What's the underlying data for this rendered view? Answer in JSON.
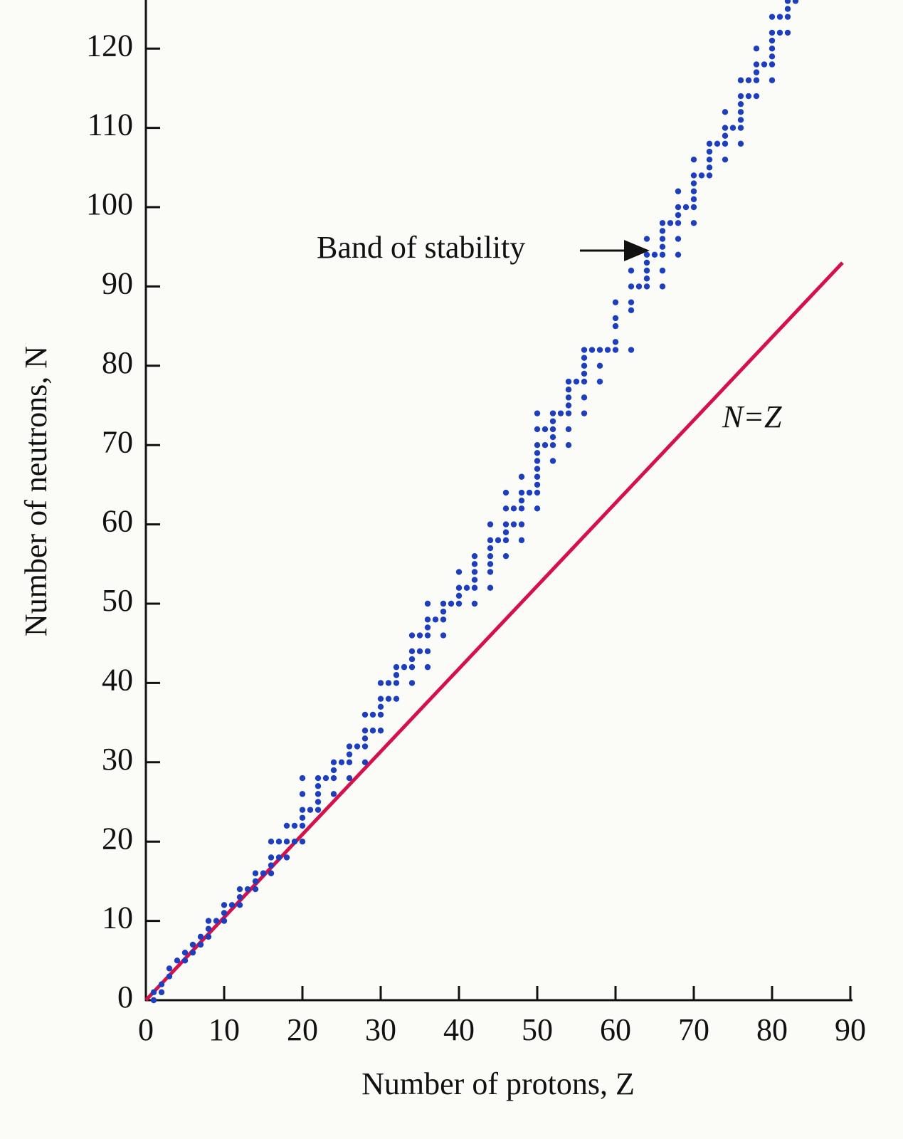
{
  "chart_data": {
    "type": "scatter",
    "xlabel": "Number of protons, Z",
    "ylabel": "Number of neutrons, N",
    "annotations": [
      "Band of stability",
      "N=Z"
    ],
    "xlim": [
      0,
      90
    ],
    "ylim": [
      0,
      126
    ],
    "xticks": [
      0,
      10,
      20,
      30,
      40,
      50,
      60,
      70,
      80,
      90
    ],
    "yticks": [
      0,
      10,
      20,
      30,
      40,
      50,
      60,
      70,
      80,
      90,
      100,
      110,
      120
    ],
    "point_color": "#1d3fbf",
    "line_color": "#d5104a",
    "line": {
      "x": [
        0,
        89
      ],
      "y": [
        0,
        93
      ]
    },
    "points": [
      [
        1,
        0
      ],
      [
        1,
        1
      ],
      [
        2,
        1
      ],
      [
        2,
        2
      ],
      [
        3,
        3
      ],
      [
        3,
        4
      ],
      [
        4,
        5
      ],
      [
        5,
        5
      ],
      [
        5,
        6
      ],
      [
        6,
        6
      ],
      [
        6,
        7
      ],
      [
        7,
        7
      ],
      [
        7,
        8
      ],
      [
        8,
        8
      ],
      [
        8,
        9
      ],
      [
        8,
        10
      ],
      [
        9,
        10
      ],
      [
        10,
        10
      ],
      [
        10,
        11
      ],
      [
        10,
        12
      ],
      [
        11,
        12
      ],
      [
        12,
        12
      ],
      [
        12,
        13
      ],
      [
        12,
        14
      ],
      [
        13,
        14
      ],
      [
        14,
        14
      ],
      [
        14,
        15
      ],
      [
        14,
        16
      ],
      [
        15,
        16
      ],
      [
        16,
        16
      ],
      [
        16,
        17
      ],
      [
        16,
        18
      ],
      [
        16,
        20
      ],
      [
        17,
        18
      ],
      [
        17,
        20
      ],
      [
        18,
        18
      ],
      [
        18,
        20
      ],
      [
        18,
        22
      ],
      [
        19,
        20
      ],
      [
        19,
        22
      ],
      [
        20,
        20
      ],
      [
        20,
        22
      ],
      [
        20,
        23
      ],
      [
        20,
        24
      ],
      [
        20,
        26
      ],
      [
        20,
        28
      ],
      [
        21,
        24
      ],
      [
        22,
        24
      ],
      [
        22,
        25
      ],
      [
        22,
        26
      ],
      [
        22,
        27
      ],
      [
        22,
        28
      ],
      [
        23,
        28
      ],
      [
        24,
        26
      ],
      [
        24,
        28
      ],
      [
        24,
        29
      ],
      [
        24,
        30
      ],
      [
        25,
        30
      ],
      [
        26,
        28
      ],
      [
        26,
        30
      ],
      [
        26,
        31
      ],
      [
        26,
        32
      ],
      [
        27,
        32
      ],
      [
        28,
        30
      ],
      [
        28,
        32
      ],
      [
        28,
        33
      ],
      [
        28,
        34
      ],
      [
        28,
        36
      ],
      [
        29,
        34
      ],
      [
        29,
        36
      ],
      [
        30,
        34
      ],
      [
        30,
        36
      ],
      [
        30,
        37
      ],
      [
        30,
        38
      ],
      [
        30,
        40
      ],
      [
        31,
        38
      ],
      [
        31,
        40
      ],
      [
        32,
        38
      ],
      [
        32,
        40
      ],
      [
        32,
        41
      ],
      [
        32,
        42
      ],
      [
        33,
        42
      ],
      [
        34,
        40
      ],
      [
        34,
        42
      ],
      [
        34,
        43
      ],
      [
        34,
        44
      ],
      [
        34,
        46
      ],
      [
        35,
        44
      ],
      [
        35,
        46
      ],
      [
        36,
        42
      ],
      [
        36,
        44
      ],
      [
        36,
        46
      ],
      [
        36,
        47
      ],
      [
        36,
        48
      ],
      [
        36,
        50
      ],
      [
        37,
        48
      ],
      [
        38,
        46
      ],
      [
        38,
        48
      ],
      [
        38,
        49
      ],
      [
        38,
        50
      ],
      [
        39,
        50
      ],
      [
        40,
        50
      ],
      [
        40,
        51
      ],
      [
        40,
        52
      ],
      [
        40,
        54
      ],
      [
        41,
        52
      ],
      [
        42,
        50
      ],
      [
        42,
        52
      ],
      [
        42,
        53
      ],
      [
        42,
        54
      ],
      [
        42,
        55
      ],
      [
        42,
        56
      ],
      [
        44,
        52
      ],
      [
        44,
        54
      ],
      [
        44,
        55
      ],
      [
        44,
        56
      ],
      [
        44,
        57
      ],
      [
        44,
        58
      ],
      [
        44,
        60
      ],
      [
        45,
        58
      ],
      [
        46,
        56
      ],
      [
        46,
        58
      ],
      [
        46,
        59
      ],
      [
        46,
        60
      ],
      [
        46,
        62
      ],
      [
        46,
        64
      ],
      [
        47,
        60
      ],
      [
        47,
        62
      ],
      [
        48,
        58
      ],
      [
        48,
        60
      ],
      [
        48,
        62
      ],
      [
        48,
        63
      ],
      [
        48,
        64
      ],
      [
        48,
        66
      ],
      [
        49,
        64
      ],
      [
        50,
        62
      ],
      [
        50,
        64
      ],
      [
        50,
        65
      ],
      [
        50,
        66
      ],
      [
        50,
        67
      ],
      [
        50,
        68
      ],
      [
        50,
        69
      ],
      [
        50,
        70
      ],
      [
        50,
        72
      ],
      [
        50,
        74
      ],
      [
        51,
        70
      ],
      [
        51,
        72
      ],
      [
        52,
        68
      ],
      [
        52,
        70
      ],
      [
        52,
        71
      ],
      [
        52,
        72
      ],
      [
        52,
        73
      ],
      [
        52,
        74
      ],
      [
        53,
        74
      ],
      [
        54,
        70
      ],
      [
        54,
        72
      ],
      [
        54,
        74
      ],
      [
        54,
        75
      ],
      [
        54,
        76
      ],
      [
        54,
        77
      ],
      [
        54,
        78
      ],
      [
        55,
        78
      ],
      [
        56,
        74
      ],
      [
        56,
        76
      ],
      [
        56,
        78
      ],
      [
        56,
        79
      ],
      [
        56,
        80
      ],
      [
        56,
        81
      ],
      [
        56,
        82
      ],
      [
        57,
        82
      ],
      [
        58,
        78
      ],
      [
        58,
        80
      ],
      [
        58,
        82
      ],
      [
        59,
        82
      ],
      [
        60,
        82
      ],
      [
        60,
        83
      ],
      [
        60,
        85
      ],
      [
        60,
        86
      ],
      [
        60,
        88
      ],
      [
        62,
        82
      ],
      [
        62,
        87
      ],
      [
        62,
        88
      ],
      [
        62,
        90
      ],
      [
        62,
        92
      ],
      [
        63,
        90
      ],
      [
        64,
        90
      ],
      [
        64,
        91
      ],
      [
        64,
        92
      ],
      [
        64,
        93
      ],
      [
        64,
        94
      ],
      [
        64,
        96
      ],
      [
        65,
        94
      ],
      [
        66,
        90
      ],
      [
        66,
        92
      ],
      [
        66,
        94
      ],
      [
        66,
        95
      ],
      [
        66,
        96
      ],
      [
        66,
        97
      ],
      [
        66,
        98
      ],
      [
        67,
        98
      ],
      [
        68,
        94
      ],
      [
        68,
        96
      ],
      [
        68,
        98
      ],
      [
        68,
        99
      ],
      [
        68,
        100
      ],
      [
        68,
        102
      ],
      [
        69,
        100
      ],
      [
        70,
        98
      ],
      [
        70,
        100
      ],
      [
        70,
        101
      ],
      [
        70,
        102
      ],
      [
        70,
        103
      ],
      [
        70,
        104
      ],
      [
        70,
        106
      ],
      [
        71,
        104
      ],
      [
        72,
        104
      ],
      [
        72,
        105
      ],
      [
        72,
        106
      ],
      [
        72,
        107
      ],
      [
        72,
        108
      ],
      [
        73,
        108
      ],
      [
        74,
        106
      ],
      [
        74,
        108
      ],
      [
        74,
        109
      ],
      [
        74,
        110
      ],
      [
        74,
        112
      ],
      [
        75,
        110
      ],
      [
        76,
        108
      ],
      [
        76,
        110
      ],
      [
        76,
        111
      ],
      [
        76,
        112
      ],
      [
        76,
        113
      ],
      [
        76,
        114
      ],
      [
        76,
        116
      ],
      [
        77,
        114
      ],
      [
        77,
        116
      ],
      [
        78,
        114
      ],
      [
        78,
        116
      ],
      [
        78,
        117
      ],
      [
        78,
        118
      ],
      [
        78,
        120
      ],
      [
        79,
        118
      ],
      [
        80,
        116
      ],
      [
        80,
        118
      ],
      [
        80,
        119
      ],
      [
        80,
        120
      ],
      [
        80,
        121
      ],
      [
        80,
        122
      ],
      [
        80,
        124
      ],
      [
        81,
        122
      ],
      [
        81,
        124
      ],
      [
        82,
        122
      ],
      [
        82,
        124
      ],
      [
        82,
        125
      ],
      [
        82,
        126
      ],
      [
        83,
        126
      ]
    ]
  }
}
